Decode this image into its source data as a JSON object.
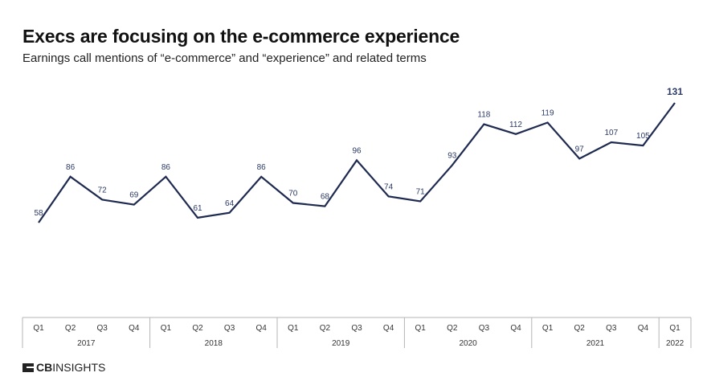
{
  "title": "Execs are focusing on the e-commerce experience",
  "subtitle": "Earnings call mentions of “e-commerce” and “experience” and related terms",
  "logo": "CBINSIGHTS",
  "colors": {
    "line": "#1f2a50",
    "label": "#2c3a66",
    "axis": "#b5b5b5"
  },
  "chart_data": {
    "type": "line",
    "title": "Execs are focusing on the e-commerce experience",
    "subtitle": "Earnings call mentions of “e-commerce” and “experience” and related terms",
    "quarters": [
      "Q1",
      "Q2",
      "Q3",
      "Q4",
      "Q1",
      "Q2",
      "Q3",
      "Q4",
      "Q1",
      "Q2",
      "Q3",
      "Q4",
      "Q1",
      "Q2",
      "Q3",
      "Q4",
      "Q1",
      "Q2",
      "Q3",
      "Q4",
      "Q1"
    ],
    "years": [
      {
        "label": "2017",
        "count": 4
      },
      {
        "label": "2018",
        "count": 4
      },
      {
        "label": "2019",
        "count": 4
      },
      {
        "label": "2020",
        "count": 4
      },
      {
        "label": "2021",
        "count": 4
      },
      {
        "label": "2022",
        "count": 1
      }
    ],
    "values": [
      58,
      86,
      72,
      69,
      86,
      61,
      64,
      86,
      70,
      68,
      96,
      74,
      71,
      93,
      118,
      112,
      119,
      97,
      107,
      105,
      131
    ],
    "ylim": [
      0,
      131
    ],
    "grid": false,
    "data_labels": true,
    "legend": "none"
  }
}
